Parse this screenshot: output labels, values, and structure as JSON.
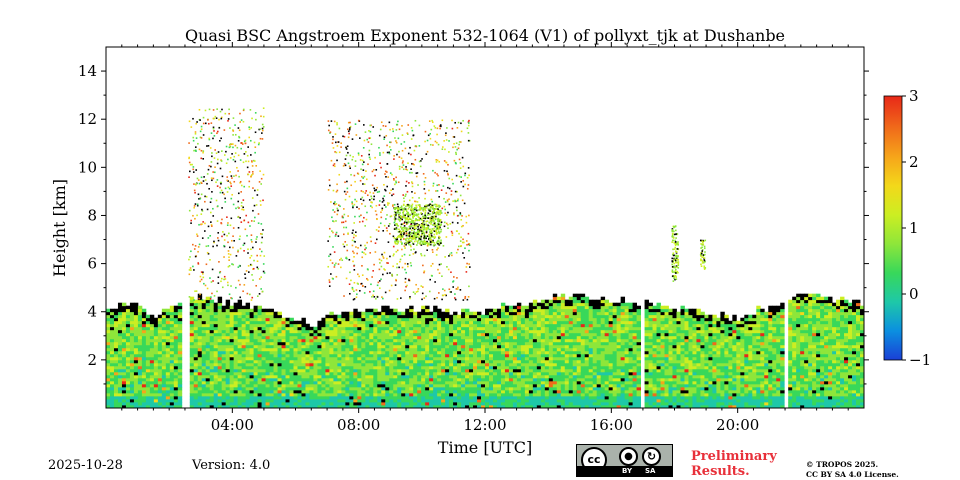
{
  "chart_data": {
    "type": "heatmap",
    "title": "Quasi BSC Angstroem Exponent 532-1064 (V1) of pollyxt_tjk at Dushanbe",
    "xlabel": "Time [UTC]",
    "ylabel": "Height [km]",
    "x_unit": "hours UTC",
    "xlim": [
      0,
      24
    ],
    "ylim": [
      0,
      15
    ],
    "x_ticks": [
      {
        "value": 4,
        "label": "04:00"
      },
      {
        "value": 8,
        "label": "08:00"
      },
      {
        "value": 12,
        "label": "12:00"
      },
      {
        "value": 16,
        "label": "16:00"
      },
      {
        "value": 20,
        "label": "20:00"
      }
    ],
    "y_ticks": [
      {
        "value": 2,
        "label": "2"
      },
      {
        "value": 4,
        "label": "4"
      },
      {
        "value": 6,
        "label": "6"
      },
      {
        "value": 8,
        "label": "8"
      },
      {
        "value": 10,
        "label": "10"
      },
      {
        "value": 12,
        "label": "12"
      },
      {
        "value": 14,
        "label": "14"
      }
    ],
    "colorbar": {
      "range": [
        -1,
        3
      ],
      "colors": [
        "#1a3fd6",
        "#0b8fe0",
        "#1ec8a8",
        "#38d85a",
        "#8ee63a",
        "#ccee22",
        "#f3d81a",
        "#f6a51a",
        "#f06a1a",
        "#e82818"
      ],
      "ticks": [
        {
          "value": -1,
          "label": "−1"
        },
        {
          "value": 0,
          "label": "0"
        },
        {
          "value": 1,
          "label": "1"
        },
        {
          "value": 2,
          "label": "2"
        },
        {
          "value": 3,
          "label": "3"
        }
      ]
    },
    "boundary_layer_top_km": [
      [
        0,
        4.1
      ],
      [
        0.5,
        4.2
      ],
      [
        1,
        4.2
      ],
      [
        1.5,
        3.7
      ],
      [
        2,
        4.2
      ],
      [
        2.5,
        4.4
      ],
      [
        3,
        4.5
      ],
      [
        4,
        4.3
      ],
      [
        5,
        4.0
      ],
      [
        6,
        3.6
      ],
      [
        6.5,
        3.4
      ],
      [
        7,
        3.9
      ],
      [
        8,
        4.0
      ],
      [
        9,
        4.0
      ],
      [
        10,
        4.1
      ],
      [
        11,
        3.9
      ],
      [
        12,
        4.0
      ],
      [
        13,
        4.3
      ],
      [
        14,
        4.5
      ],
      [
        15,
        4.6
      ],
      [
        16,
        4.4
      ],
      [
        17,
        4.3
      ],
      [
        18,
        4.1
      ],
      [
        19,
        3.9
      ],
      [
        20,
        3.7
      ],
      [
        21,
        4.2
      ],
      [
        22,
        4.6
      ],
      [
        23,
        4.5
      ],
      [
        24,
        4.3
      ]
    ],
    "data_gaps_hours": [
      [
        2.45,
        2.6
      ],
      [
        16.9,
        17.05
      ],
      [
        21.5,
        21.62
      ]
    ],
    "elevated_layers": [
      {
        "label": "sparse aerosol",
        "t_start": 2.6,
        "t_end": 5.0,
        "h_bottom": 4.5,
        "h_top": 12.5
      },
      {
        "label": "sparse aerosol",
        "t_start": 7.0,
        "t_end": 11.5,
        "h_bottom": 4.5,
        "h_top": 12.0
      },
      {
        "label": "dense layer",
        "t_start": 9.1,
        "t_end": 10.6,
        "h_bottom": 6.8,
        "h_top": 8.5
      },
      {
        "label": "cloud streak",
        "t_start": 17.9,
        "t_end": 18.1,
        "h_bottom": 5.3,
        "h_top": 7.6
      },
      {
        "label": "cloud streak",
        "t_start": 18.8,
        "t_end": 18.95,
        "h_bottom": 5.8,
        "h_top": 7.0
      }
    ]
  },
  "footer": {
    "date": "2025-10-28",
    "version": "Version: 4.0",
    "preliminary_line1": "Preliminary",
    "preliminary_line2": "Results.",
    "copyright_line1": "© TROPOS 2025.",
    "copyright_line2": "CC BY SA 4.0 License.",
    "license_badge": {
      "cc": "cc",
      "by": "BY",
      "sa": "SA"
    }
  }
}
